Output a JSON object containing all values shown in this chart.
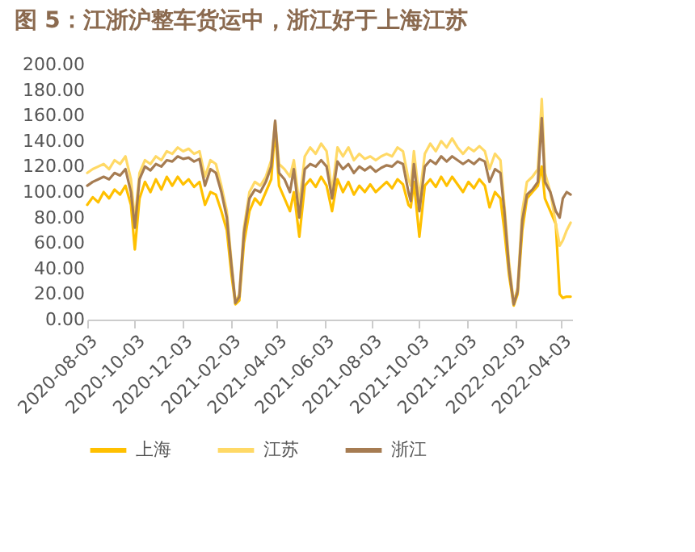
{
  "chart_data": {
    "type": "line",
    "title": "图 5：江浙沪整车货运中，浙江好于上海江苏",
    "x": [
      "2020-08-03",
      "2020-08-10",
      "2020-08-17",
      "2020-08-24",
      "2020-08-31",
      "2020-09-07",
      "2020-09-14",
      "2020-09-21",
      "2020-09-28",
      "2020-10-03",
      "2020-10-09",
      "2020-10-16",
      "2020-10-23",
      "2020-10-30",
      "2020-11-06",
      "2020-11-13",
      "2020-11-20",
      "2020-11-27",
      "2020-12-04",
      "2020-12-11",
      "2020-12-18",
      "2020-12-25",
      "2021-01-01",
      "2021-01-08",
      "2021-01-15",
      "2021-01-22",
      "2021-01-29",
      "2021-02-04",
      "2021-02-09",
      "2021-02-14",
      "2021-02-20",
      "2021-02-27",
      "2021-03-06",
      "2021-03-13",
      "2021-03-20",
      "2021-03-27",
      "2021-04-01",
      "2021-04-06",
      "2021-04-13",
      "2021-04-20",
      "2021-04-25",
      "2021-05-02",
      "2021-05-09",
      "2021-05-16",
      "2021-05-23",
      "2021-05-30",
      "2021-06-06",
      "2021-06-13",
      "2021-06-20",
      "2021-06-27",
      "2021-07-04",
      "2021-07-11",
      "2021-07-18",
      "2021-07-25",
      "2021-08-01",
      "2021-08-08",
      "2021-08-15",
      "2021-08-22",
      "2021-08-29",
      "2021-09-05",
      "2021-09-12",
      "2021-09-19",
      "2021-09-22",
      "2021-09-26",
      "2021-10-03",
      "2021-10-10",
      "2021-10-17",
      "2021-10-24",
      "2021-10-31",
      "2021-11-07",
      "2021-11-14",
      "2021-11-21",
      "2021-11-28",
      "2021-12-05",
      "2021-12-12",
      "2021-12-19",
      "2021-12-26",
      "2022-01-01",
      "2022-01-08",
      "2022-01-15",
      "2022-01-20",
      "2022-01-26",
      "2022-02-01",
      "2022-02-06",
      "2022-02-12",
      "2022-02-18",
      "2022-02-25",
      "2022-03-04",
      "2022-03-09",
      "2022-03-13",
      "2022-03-20",
      "2022-03-27",
      "2022-04-01",
      "2022-04-05",
      "2022-04-10",
      "2022-04-15"
    ],
    "series": [
      {
        "name": "上海",
        "color": "#ffc000",
        "values": [
          90,
          96,
          92,
          100,
          95,
          102,
          98,
          105,
          90,
          55,
          95,
          108,
          100,
          110,
          102,
          112,
          105,
          112,
          106,
          110,
          104,
          108,
          90,
          100,
          98,
          85,
          70,
          35,
          12,
          15,
          60,
          85,
          95,
          90,
          100,
          110,
          150,
          105,
          95,
          85,
          100,
          65,
          105,
          110,
          104,
          112,
          105,
          85,
          110,
          100,
          108,
          98,
          105,
          100,
          106,
          100,
          104,
          108,
          103,
          110,
          106,
          90,
          88,
          108,
          65,
          105,
          110,
          104,
          112,
          105,
          112,
          106,
          100,
          108,
          103,
          110,
          105,
          88,
          100,
          95,
          70,
          35,
          11,
          20,
          70,
          95,
          100,
          105,
          120,
          95,
          85,
          75,
          20,
          17,
          18,
          18
        ]
      },
      {
        "name": "江苏",
        "color": "#ffd966",
        "values": [
          115,
          118,
          120,
          122,
          118,
          125,
          122,
          128,
          110,
          78,
          115,
          125,
          122,
          128,
          125,
          132,
          130,
          135,
          132,
          134,
          130,
          132,
          112,
          125,
          122,
          105,
          85,
          45,
          14,
          20,
          72,
          100,
          108,
          105,
          112,
          125,
          155,
          122,
          118,
          112,
          125,
          90,
          128,
          135,
          130,
          138,
          132,
          100,
          135,
          128,
          135,
          125,
          130,
          126,
          128,
          125,
          128,
          130,
          128,
          135,
          132,
          110,
          105,
          132,
          95,
          130,
          138,
          132,
          140,
          135,
          142,
          135,
          130,
          135,
          132,
          136,
          132,
          118,
          130,
          125,
          90,
          45,
          13,
          25,
          85,
          108,
          112,
          118,
          173,
          115,
          100,
          75,
          58,
          62,
          70,
          76
        ]
      },
      {
        "name": "浙江",
        "color": "#a67c52",
        "values": [
          105,
          108,
          110,
          112,
          110,
          115,
          113,
          118,
          100,
          72,
          110,
          120,
          117,
          122,
          120,
          125,
          124,
          128,
          126,
          127,
          124,
          126,
          105,
          118,
          115,
          100,
          80,
          42,
          13,
          18,
          68,
          95,
          102,
          100,
          108,
          120,
          156,
          115,
          110,
          100,
          118,
          80,
          118,
          122,
          120,
          125,
          120,
          95,
          124,
          118,
          122,
          115,
          120,
          117,
          120,
          116,
          119,
          121,
          120,
          124,
          122,
          100,
          93,
          122,
          85,
          120,
          125,
          122,
          128,
          124,
          128,
          125,
          122,
          125,
          122,
          126,
          124,
          108,
          118,
          115,
          85,
          40,
          12,
          22,
          78,
          98,
          102,
          108,
          158,
          108,
          100,
          85,
          80,
          95,
          100,
          98
        ]
      }
    ],
    "xlim": [
      "2020-08-03",
      "2022-04-17"
    ],
    "xticks": [
      "2020-08-03",
      "2020-10-03",
      "2020-12-03",
      "2021-02-03",
      "2021-04-03",
      "2021-06-03",
      "2021-08-03",
      "2021-10-03",
      "2021-12-03",
      "2022-02-03",
      "2022-04-03"
    ],
    "ylim": [
      0,
      200
    ],
    "yticks": [
      {
        "value": 0,
        "label": "0.00"
      },
      {
        "value": 20,
        "label": "20.00"
      },
      {
        "value": 40,
        "label": "40.00"
      },
      {
        "value": 60,
        "label": "60.00"
      },
      {
        "value": 80,
        "label": "80.00"
      },
      {
        "value": 100,
        "label": "100.00"
      },
      {
        "value": 120,
        "label": "120.00"
      },
      {
        "value": 140,
        "label": "140.00"
      },
      {
        "value": 160,
        "label": "160.00"
      },
      {
        "value": 180,
        "label": "180.00"
      },
      {
        "value": 200,
        "label": "200.00"
      }
    ],
    "grid": false,
    "legend": "bottom"
  }
}
